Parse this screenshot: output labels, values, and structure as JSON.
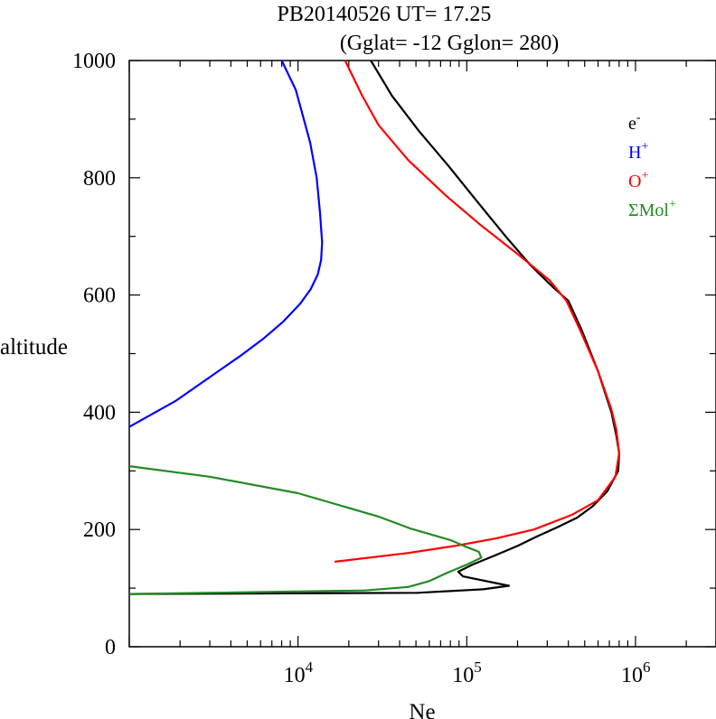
{
  "chart_data": {
    "type": "line",
    "title": "PB20140526   UT=  17.25",
    "subtitle": "(Gglat= -12   Gglon=  280)",
    "xlabel": "Ne",
    "ylabel": "altitude",
    "x_scale": "log",
    "xlim": [
      1000,
      3000000
    ],
    "ylim": [
      0,
      1000
    ],
    "x_ticks": [
      {
        "value": 10000,
        "base": "10",
        "exp": "4"
      },
      {
        "value": 100000,
        "base": "10",
        "exp": "5"
      },
      {
        "value": 1000000,
        "base": "10",
        "exp": "6"
      }
    ],
    "y_ticks": [
      0,
      200,
      400,
      600,
      800,
      1000
    ],
    "legend_position": "top-right",
    "series": [
      {
        "name": "e-",
        "label_base": "e",
        "label_sup": "-",
        "color": "#000000",
        "points": [
          [
            1000,
            90
          ],
          [
            51000,
            92
          ],
          [
            125000,
            98
          ],
          [
            178000,
            104
          ],
          [
            130000,
            112
          ],
          [
            95000,
            120
          ],
          [
            89000,
            128
          ],
          [
            108000,
            140
          ],
          [
            145000,
            155
          ],
          [
            200000,
            172
          ],
          [
            260000,
            188
          ],
          [
            345000,
            204
          ],
          [
            450000,
            220
          ],
          [
            560000,
            240
          ],
          [
            680000,
            265
          ],
          [
            790000,
            300
          ],
          [
            800000,
            330
          ],
          [
            770000,
            360
          ],
          [
            720000,
            400
          ],
          [
            600000,
            470
          ],
          [
            480000,
            540
          ],
          [
            400000,
            590
          ],
          [
            320000,
            615
          ],
          [
            240000,
            650
          ],
          [
            170000,
            700
          ],
          [
            115000,
            760
          ],
          [
            78000,
            820
          ],
          [
            52000,
            880
          ],
          [
            36000,
            940
          ],
          [
            27000,
            1000
          ]
        ]
      },
      {
        "name": "H+",
        "label_base": "H",
        "label_sup": "+",
        "color": "#0000ff",
        "points": [
          [
            1000,
            375
          ],
          [
            1900,
            420
          ],
          [
            3000,
            460
          ],
          [
            4500,
            495
          ],
          [
            6200,
            525
          ],
          [
            8200,
            555
          ],
          [
            10300,
            585
          ],
          [
            11900,
            610
          ],
          [
            13100,
            635
          ],
          [
            13700,
            660
          ],
          [
            13900,
            690
          ],
          [
            13500,
            740
          ],
          [
            12900,
            800
          ],
          [
            11800,
            860
          ],
          [
            9700,
            950
          ],
          [
            8000,
            1000
          ]
        ]
      },
      {
        "name": "O+",
        "label_base": "O",
        "label_sup": "+",
        "color": "#ff0000",
        "points": [
          [
            16500,
            145
          ],
          [
            45000,
            160
          ],
          [
            85000,
            172
          ],
          [
            150000,
            185
          ],
          [
            250000,
            200
          ],
          [
            420000,
            225
          ],
          [
            600000,
            250
          ],
          [
            760000,
            290
          ],
          [
            800000,
            330
          ],
          [
            770000,
            370
          ],
          [
            720000,
            405
          ],
          [
            600000,
            470
          ],
          [
            470000,
            540
          ],
          [
            390000,
            590
          ],
          [
            310000,
            625
          ],
          [
            200000,
            670
          ],
          [
            120000,
            720
          ],
          [
            75000,
            770
          ],
          [
            45000,
            830
          ],
          [
            30000,
            890
          ],
          [
            24000,
            940
          ],
          [
            19000,
            1000
          ]
        ]
      },
      {
        "name": "ΣMol+",
        "label_base": "ΣMol",
        "label_sup": "+",
        "color": "#228b22",
        "points": [
          [
            1000,
            308
          ],
          [
            3000,
            290
          ],
          [
            10000,
            262
          ],
          [
            30000,
            222
          ],
          [
            46000,
            202
          ],
          [
            80000,
            182
          ],
          [
            100000,
            170
          ],
          [
            118000,
            162
          ],
          [
            122000,
            152
          ],
          [
            100000,
            140
          ],
          [
            75000,
            125
          ],
          [
            60000,
            112
          ],
          [
            45000,
            102
          ],
          [
            25000,
            96
          ],
          [
            1000,
            90
          ]
        ]
      }
    ]
  }
}
